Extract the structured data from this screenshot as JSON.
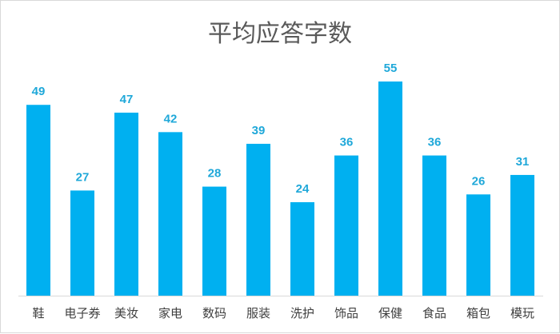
{
  "chart_data": {
    "type": "bar",
    "title": "平均应答字数",
    "categories": [
      "鞋",
      "电子券",
      "美妆",
      "家电",
      "数码",
      "服装",
      "洗护",
      "饰品",
      "保健",
      "食品",
      "箱包",
      "模玩"
    ],
    "values": [
      49,
      27,
      47,
      42,
      28,
      39,
      24,
      36,
      55,
      36,
      26,
      31
    ],
    "ylim": [
      0,
      55
    ],
    "grid": false,
    "legend": "none",
    "bar_color": "#00b0f0",
    "label_color": "#1fa8d9",
    "axis_color": "#d9d9d9"
  }
}
